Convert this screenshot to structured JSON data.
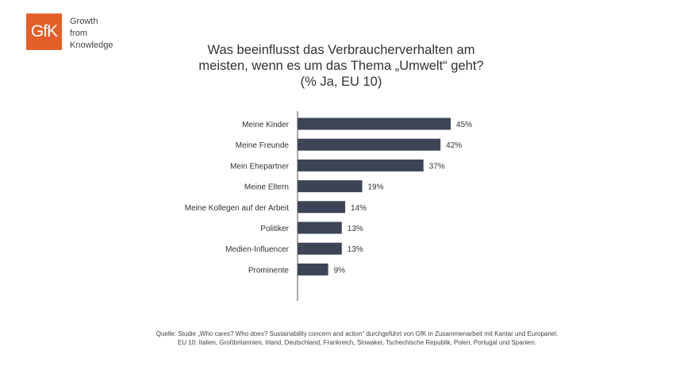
{
  "logo": {
    "text": "GfK",
    "tagline": [
      "Growth",
      "from",
      "Knowledge"
    ]
  },
  "chart_data": {
    "type": "bar",
    "orientation": "horizontal",
    "title": [
      "Was beeinflusst das Verbraucherverhalten am",
      "meisten, wenn es um das Thema „Umwelt“ geht?",
      "(% Ja, EU 10)"
    ],
    "categories": [
      "Meine Kinder",
      "Meine Freunde",
      "Mein Ehepartner",
      "Meine Eltern",
      "Meine Kollegen auf der Arbeit",
      "Politiker",
      "Medien-Influencer",
      "Prominente"
    ],
    "values": [
      45,
      42,
      37,
      19,
      14,
      13,
      13,
      9
    ],
    "labels": [
      "45%",
      "42%",
      "37%",
      "19%",
      "14%",
      "13%",
      "13%",
      "9%"
    ],
    "xlim": [
      0,
      100
    ],
    "bar_color": "#3d4456",
    "grid": false
  },
  "footer": [
    "Quelle: Studie „Who cares? Who does? Sustainability concern and action“ durchgeführt von GfK in Zusammenarbeit mit Kantar und Europanel.",
    "EU 10: Italien, Großbritannien, Irland, Deutschland, Frankreich, Slowakei, Tschechische Republik, Polen, Portugal und Spanien."
  ]
}
